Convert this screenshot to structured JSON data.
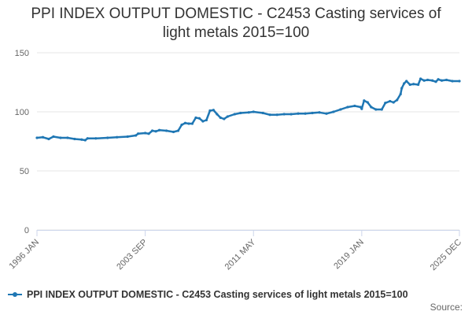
{
  "chart_data": {
    "type": "line",
    "title": "PPI INDEX OUTPUT DOMESTIC - C2453 Casting services of light metals 2015=100",
    "xlabel": "",
    "ylabel": "",
    "ylim": [
      0,
      150
    ],
    "yticks": [
      0,
      50,
      100,
      150
    ],
    "xlim": [
      "1996-01",
      "2025-12"
    ],
    "xtick_labels": [
      {
        "date": "1996-01",
        "label": "1996 JAN"
      },
      {
        "date": "2003-09",
        "label": "2003 SEP"
      },
      {
        "date": "2011-05",
        "label": "2011 MAY"
      },
      {
        "date": "2019-01",
        "label": "2019 JAN"
      },
      {
        "date": "2025-12",
        "label": "2025 DEC"
      }
    ],
    "grid": "horizontal",
    "legend_position": "bottom-left",
    "colors": {
      "series": "#1f77b4",
      "grid": "#e6e6e6",
      "axis": "#ccd6eb",
      "text": "#333333"
    },
    "series": [
      {
        "name": "PPI INDEX OUTPUT DOMESTIC - C2453 Casting services of light metals 2015=100",
        "points": [
          [
            "1996-01",
            78
          ],
          [
            "1996-06",
            78.5
          ],
          [
            "1996-11",
            77
          ],
          [
            "1997-03",
            79
          ],
          [
            "1997-09",
            78
          ],
          [
            "1998-03",
            78
          ],
          [
            "1998-09",
            77
          ],
          [
            "1999-03",
            76.5
          ],
          [
            "1999-06",
            76
          ],
          [
            "1999-08",
            77.5
          ],
          [
            "2000-03",
            77.5
          ],
          [
            "2001-01",
            78
          ],
          [
            "2001-09",
            78.5
          ],
          [
            "2002-06",
            79
          ],
          [
            "2003-01",
            80
          ],
          [
            "2003-03",
            81.5
          ],
          [
            "2003-09",
            82
          ],
          [
            "2003-12",
            81.5
          ],
          [
            "2004-03",
            84
          ],
          [
            "2004-06",
            83.5
          ],
          [
            "2004-09",
            84.5
          ],
          [
            "2005-03",
            84
          ],
          [
            "2005-09",
            83
          ],
          [
            "2006-01",
            84
          ],
          [
            "2006-04",
            89
          ],
          [
            "2006-07",
            90.5
          ],
          [
            "2006-10",
            90
          ],
          [
            "2007-01",
            90
          ],
          [
            "2007-04",
            95
          ],
          [
            "2007-07",
            94.5
          ],
          [
            "2007-10",
            92
          ],
          [
            "2008-01",
            93
          ],
          [
            "2008-04",
            101
          ],
          [
            "2008-07",
            101.5
          ],
          [
            "2008-10",
            98
          ],
          [
            "2009-01",
            95
          ],
          [
            "2009-04",
            94
          ],
          [
            "2009-07",
            96
          ],
          [
            "2010-01",
            98
          ],
          [
            "2010-06",
            99
          ],
          [
            "2011-01",
            99.5
          ],
          [
            "2011-05",
            100
          ],
          [
            "2012-01",
            99
          ],
          [
            "2012-07",
            97.5
          ],
          [
            "2013-01",
            97.5
          ],
          [
            "2013-07",
            98
          ],
          [
            "2014-01",
            98
          ],
          [
            "2014-07",
            98.5
          ],
          [
            "2015-01",
            98.5
          ],
          [
            "2015-07",
            99
          ],
          [
            "2016-01",
            99.5
          ],
          [
            "2016-07",
            98.5
          ],
          [
            "2017-01",
            100
          ],
          [
            "2017-07",
            102
          ],
          [
            "2018-01",
            104
          ],
          [
            "2018-07",
            105
          ],
          [
            "2018-12",
            104
          ],
          [
            "2019-01",
            102.5
          ],
          [
            "2019-03",
            109.5
          ],
          [
            "2019-06",
            108
          ],
          [
            "2019-09",
            104
          ],
          [
            "2020-01",
            102
          ],
          [
            "2020-06",
            102
          ],
          [
            "2020-09",
            107.5
          ],
          [
            "2021-01",
            109
          ],
          [
            "2021-04",
            108
          ],
          [
            "2021-07",
            110
          ],
          [
            "2021-10",
            115
          ],
          [
            "2021-11",
            120
          ],
          [
            "2022-01",
            124
          ],
          [
            "2022-03",
            126
          ],
          [
            "2022-06",
            123
          ],
          [
            "2022-09",
            123.5
          ],
          [
            "2023-01",
            123
          ],
          [
            "2023-03",
            128
          ],
          [
            "2023-06",
            126.5
          ],
          [
            "2023-09",
            127
          ],
          [
            "2024-01",
            126.5
          ],
          [
            "2024-04",
            125.5
          ],
          [
            "2024-06",
            127.5
          ],
          [
            "2024-09",
            126.5
          ],
          [
            "2025-01",
            127
          ],
          [
            "2025-06",
            126
          ],
          [
            "2025-12",
            126
          ]
        ]
      }
    ],
    "credits": "Source:"
  }
}
